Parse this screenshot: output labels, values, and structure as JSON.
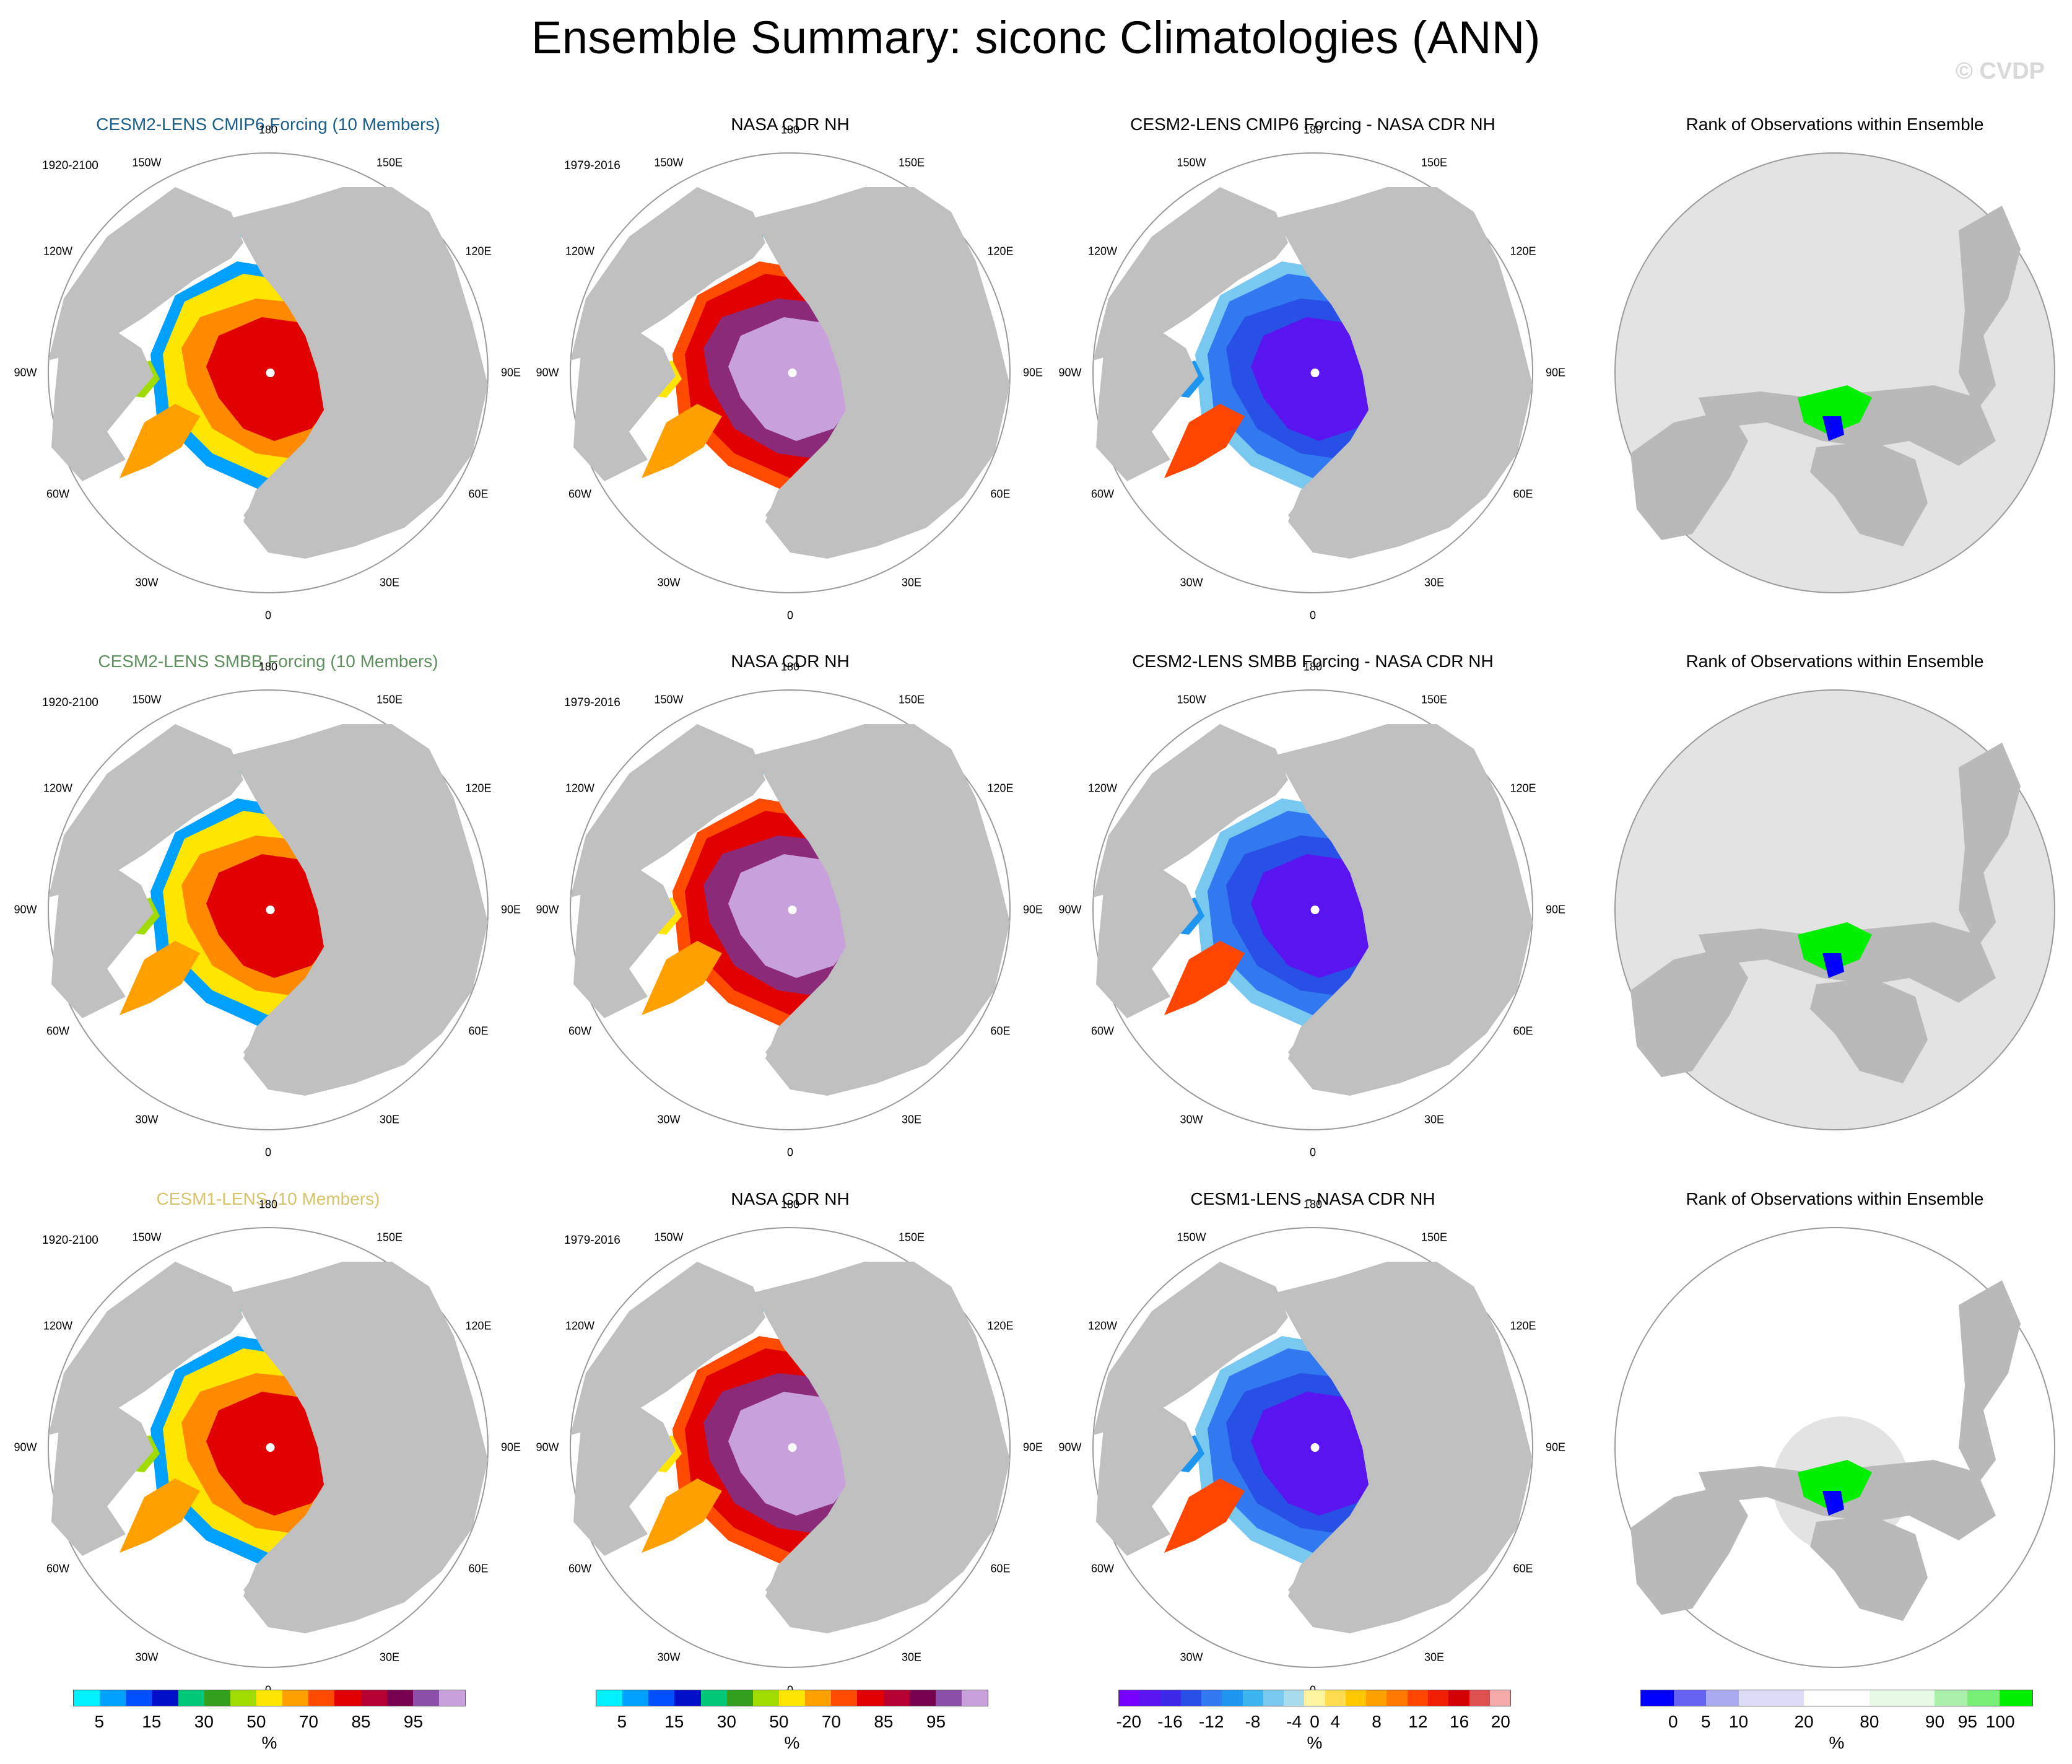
{
  "figure": {
    "title": "Ensemble Summary: siconc Climatologies (ANN)",
    "watermark": "© CVDP"
  },
  "lon_labels": [
    "180",
    "150E",
    "120E",
    "90E",
    "60E",
    "30E",
    "0",
    "30W",
    "60W",
    "90W",
    "120W",
    "150W"
  ],
  "rows": [
    {
      "model": {
        "title": "CESM2-LENS CMIP6 Forcing (10 Members)",
        "title_color": "#1a5f8a",
        "period": "1920-2100"
      },
      "obs": {
        "title": "NASA CDR NH",
        "period": "1979-2016"
      },
      "diff": {
        "title": "CESM2-LENS CMIP6 Forcing - NASA CDR NH"
      },
      "rank": {
        "title": "Rank of Observations within Ensemble"
      }
    },
    {
      "model": {
        "title": "CESM2-LENS SMBB Forcing (10 Members)",
        "title_color": "#5f8f5f",
        "period": "1920-2100"
      },
      "obs": {
        "title": "NASA CDR NH",
        "period": "1979-2016"
      },
      "diff": {
        "title": "CESM2-LENS SMBB Forcing - NASA CDR NH"
      },
      "rank": {
        "title": "Rank of Observations within Ensemble"
      }
    },
    {
      "model": {
        "title": "CESM1-LENS (10 Members)",
        "title_color": "#d6c46a",
        "period": "1920-2100"
      },
      "obs": {
        "title": "NASA CDR NH",
        "period": "1979-2016"
      },
      "diff": {
        "title": "CESM1-LENS - NASA CDR NH"
      },
      "rank": {
        "title": "Rank of Observations within Ensemble"
      }
    }
  ],
  "colorbars": {
    "concentration": {
      "colors": [
        "#00f0ff",
        "#00a0ff",
        "#0050ff",
        "#0010c8",
        "#00c878",
        "#32a01e",
        "#a0dc00",
        "#ffe600",
        "#ffa000",
        "#ff4b00",
        "#e10000",
        "#b40032",
        "#780050",
        "#8c50aa",
        "#c8a0dc"
      ],
      "ticks": [
        "5",
        "15",
        "30",
        "50",
        "70",
        "85",
        "95"
      ],
      "unit": "%"
    },
    "difference": {
      "colors": [
        "#7800ff",
        "#5a14f0",
        "#3c28e6",
        "#2850e6",
        "#3278f0",
        "#1e96f0",
        "#3cb4f0",
        "#78c8f0",
        "#aadcf0",
        "#fff5a0",
        "#ffdc50",
        "#ffc800",
        "#ffa000",
        "#ff7800",
        "#ff4600",
        "#f01e00",
        "#d20000",
        "#dc5050",
        "#f5aaaa"
      ],
      "ticks": [
        "-20",
        "-16",
        "-12",
        "-8",
        "-4",
        "0",
        "4",
        "8",
        "12",
        "16",
        "20"
      ],
      "unit": "%"
    },
    "rank": {
      "colors": [
        "#0000ff",
        "#6464f0",
        "#aaaaf0",
        "#dcdcf8",
        "#dcdcf8",
        "#ffffff",
        "#ffffff",
        "#e6fae6",
        "#e6fae6",
        "#aaf0aa",
        "#78f078",
        "#00f000"
      ],
      "ticks": [
        "0",
        "5",
        "10",
        "20",
        "80",
        "90",
        "95",
        "100"
      ],
      "unit": "%"
    }
  }
}
